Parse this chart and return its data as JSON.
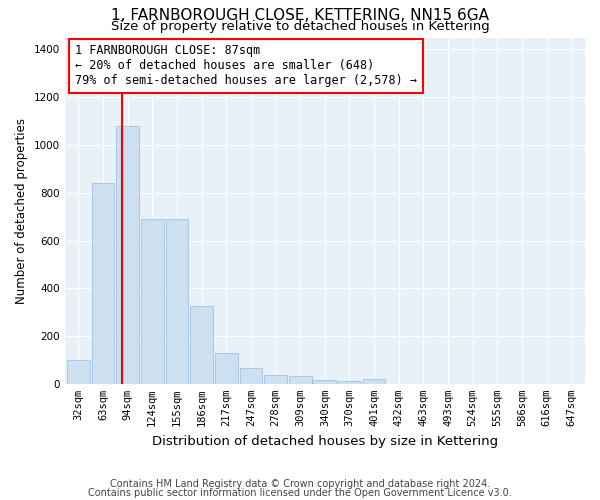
{
  "title": "1, FARNBOROUGH CLOSE, KETTERING, NN15 6GA",
  "subtitle": "Size of property relative to detached houses in Kettering",
  "xlabel": "Distribution of detached houses by size in Kettering",
  "ylabel": "Number of detached properties",
  "footnote1": "Contains HM Land Registry data © Crown copyright and database right 2024.",
  "footnote2": "Contains public sector information licensed under the Open Government Licence v3.0.",
  "bar_color": "#cce0f0",
  "bar_edge_color": "#a8c8e8",
  "annotation_text": "1 FARNBOROUGH CLOSE: 87sqm\n← 20% of detached houses are smaller (648)\n79% of semi-detached houses are larger (2,578) →",
  "categories": [
    "32sqm",
    "63sqm",
    "94sqm",
    "124sqm",
    "155sqm",
    "186sqm",
    "217sqm",
    "247sqm",
    "278sqm",
    "309sqm",
    "340sqm",
    "370sqm",
    "401sqm",
    "432sqm",
    "463sqm",
    "493sqm",
    "524sqm",
    "555sqm",
    "586sqm",
    "616sqm",
    "647sqm"
  ],
  "bar_heights": [
    100,
    840,
    1080,
    690,
    690,
    325,
    130,
    65,
    38,
    32,
    18,
    10,
    22,
    0,
    0,
    0,
    0,
    0,
    0,
    0,
    0
  ],
  "ylim": [
    0,
    1450
  ],
  "yticks": [
    0,
    200,
    400,
    600,
    800,
    1000,
    1200,
    1400
  ],
  "fig_bg": "#ffffff",
  "ax_bg": "#e8f0f8",
  "grid_color": "#ffffff",
  "title_fontsize": 11,
  "subtitle_fontsize": 9.5,
  "xlabel_fontsize": 9.5,
  "ylabel_fontsize": 8.5,
  "tick_fontsize": 7.5,
  "annotation_fontsize": 8.5,
  "footnote_fontsize": 7
}
